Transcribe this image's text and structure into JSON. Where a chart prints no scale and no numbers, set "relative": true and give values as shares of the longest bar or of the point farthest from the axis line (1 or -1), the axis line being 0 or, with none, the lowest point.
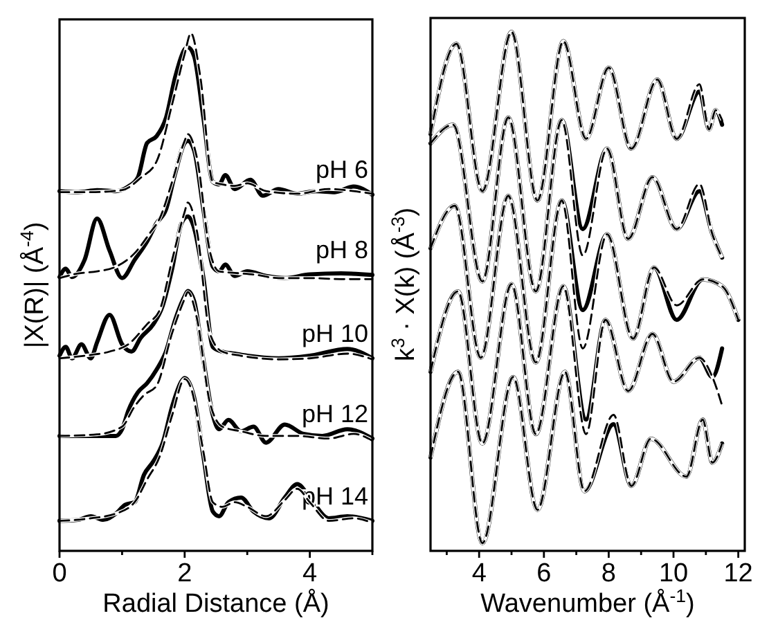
{
  "chart_data": [
    {
      "type": "line",
      "xlabel": "Radial Distance (Å)",
      "ylabel": "|X(R)| (Å$^{-4}$)",
      "xlim": [
        0,
        5
      ],
      "xticks": [
        0,
        {
          "value": 1,
          "label": null
        },
        2,
        {
          "value": 3,
          "label": null
        },
        4,
        {
          "value": 5,
          "label": null
        }
      ],
      "relative": true,
      "tick_labels": "x",
      "series": [
        {
          "name": "pH 6",
          "color": "#000000",
          "x": [
            0,
            0.3,
            0.6,
            0.9,
            1.1,
            1.25,
            1.4,
            1.55,
            1.7,
            1.85,
            2.0,
            2.05,
            2.15,
            2.3,
            2.45,
            2.55,
            2.65,
            2.8,
            3.05,
            3.25,
            3.5,
            3.8,
            4.1,
            4.4,
            4.7,
            5
          ],
          "values": [
            0.695,
            0.693,
            0.697,
            0.695,
            0.704,
            0.721,
            0.788,
            0.801,
            0.836,
            0.916,
            0.969,
            0.973,
            0.956,
            0.836,
            0.713,
            0.708,
            0.726,
            0.699,
            0.717,
            0.686,
            0.699,
            0.69,
            0.695,
            0.693,
            0.704,
            0.688
          ]
        },
        {
          "color": "#000000",
          "line_style": "dashed",
          "x": [
            0,
            0.5,
            1.0,
            1.3,
            1.55,
            1.8,
            2.0,
            2.1,
            2.25,
            2.45,
            2.6,
            2.8,
            3.0,
            3.3,
            3.8,
            4.3,
            4.7,
            5
          ],
          "values": [
            0.693,
            0.693,
            0.697,
            0.721,
            0.752,
            0.863,
            0.96,
            1.0,
            0.916,
            0.713,
            0.708,
            0.705,
            0.71,
            0.695,
            0.69,
            0.699,
            0.695,
            0.69
          ]
        },
        {
          "name": "pH 8",
          "color": "#000000",
          "x": [
            0,
            0.1,
            0.2,
            0.4,
            0.6,
            0.8,
            1.0,
            1.2,
            1.4,
            1.55,
            1.7,
            1.85,
            2.0,
            2.05,
            2.15,
            2.3,
            2.45,
            2.55,
            2.65,
            2.8,
            3.0,
            3.3,
            3.6,
            4.0,
            4.5,
            5
          ],
          "values": [
            0.529,
            0.545,
            0.529,
            0.562,
            0.642,
            0.58,
            0.527,
            0.562,
            0.598,
            0.633,
            0.659,
            0.73,
            0.788,
            0.792,
            0.774,
            0.659,
            0.549,
            0.54,
            0.553,
            0.531,
            0.54,
            0.531,
            0.527,
            0.534,
            0.536,
            0.533
          ]
        },
        {
          "color": "#000000",
          "line_style": "dashed",
          "x": [
            0,
            0.3,
            0.6,
            0.9,
            1.2,
            1.45,
            1.6,
            1.8,
            2.0,
            2.05,
            2.2,
            2.4,
            2.55,
            2.8,
            3.1,
            3.5,
            4,
            4.5,
            5
          ],
          "values": [
            0.527,
            0.536,
            0.54,
            0.549,
            0.575,
            0.615,
            0.642,
            0.713,
            0.792,
            0.805,
            0.757,
            0.58,
            0.54,
            0.537,
            0.534,
            0.527,
            0.527,
            0.525,
            0.525
          ]
        },
        {
          "name": "pH 10",
          "color": "#000000",
          "x": [
            0,
            0.1,
            0.2,
            0.35,
            0.5,
            0.6,
            0.8,
            1.0,
            1.15,
            1.3,
            1.5,
            1.65,
            1.8,
            1.95,
            2.05,
            2.15,
            2.3,
            2.45,
            2.6,
            2.8,
            3.0,
            3.5,
            4.0,
            4.6,
            5
          ],
          "values": [
            0.377,
            0.394,
            0.372,
            0.399,
            0.372,
            0.403,
            0.456,
            0.399,
            0.385,
            0.412,
            0.438,
            0.474,
            0.545,
            0.633,
            0.646,
            0.624,
            0.527,
            0.394,
            0.385,
            0.381,
            0.377,
            0.372,
            0.377,
            0.39,
            0.372
          ]
        },
        {
          "color": "#000000",
          "line_style": "dashed",
          "x": [
            0,
            0.4,
            0.8,
            1.1,
            1.4,
            1.6,
            1.8,
            2.0,
            2.05,
            2.2,
            2.4,
            2.6,
            2.9,
            3.5,
            4,
            4.6,
            5
          ],
          "values": [
            0.372,
            0.377,
            0.385,
            0.399,
            0.438,
            0.465,
            0.562,
            0.655,
            0.673,
            0.615,
            0.421,
            0.385,
            0.377,
            0.37,
            0.372,
            0.381,
            0.37
          ]
        },
        {
          "name": "pH 12",
          "color": "#000000",
          "x": [
            0,
            0.5,
            0.9,
            1.0,
            1.1,
            1.25,
            1.4,
            1.55,
            1.7,
            1.85,
            2.0,
            2.05,
            2.15,
            2.3,
            2.45,
            2.55,
            2.7,
            2.9,
            3.1,
            3.3,
            3.6,
            3.9,
            4.2,
            4.6,
            5
          ],
          "values": [
            0.222,
            0.222,
            0.222,
            0.235,
            0.271,
            0.306,
            0.324,
            0.35,
            0.385,
            0.447,
            0.492,
            0.502,
            0.483,
            0.368,
            0.262,
            0.235,
            0.253,
            0.231,
            0.24,
            0.209,
            0.244,
            0.226,
            0.222,
            0.235,
            0.217
          ]
        },
        {
          "color": "#000000",
          "line_style": "dashed",
          "x": [
            0,
            0.6,
            1.0,
            1.2,
            1.35,
            1.55,
            1.8,
            2.0,
            2.05,
            2.2,
            2.4,
            2.6,
            2.9,
            3.3,
            3.8,
            4.3,
            4.7,
            5
          ],
          "values": [
            0.222,
            0.225,
            0.24,
            0.279,
            0.301,
            0.319,
            0.421,
            0.487,
            0.5,
            0.447,
            0.288,
            0.24,
            0.231,
            0.222,
            0.222,
            0.217,
            0.226,
            0.213
          ]
        },
        {
          "name": "pH 14",
          "color": "#000000",
          "x": [
            0,
            0.3,
            0.5,
            0.7,
            0.9,
            1.05,
            1.2,
            1.35,
            1.5,
            1.65,
            1.8,
            1.95,
            2.0,
            2.15,
            2.3,
            2.45,
            2.55,
            2.7,
            2.9,
            3.1,
            3.35,
            3.6,
            3.8,
            4.0,
            4.3,
            4.6,
            5
          ],
          "values": [
            0.058,
            0.06,
            0.067,
            0.06,
            0.072,
            0.089,
            0.094,
            0.147,
            0.173,
            0.209,
            0.279,
            0.328,
            0.334,
            0.297,
            0.182,
            0.076,
            0.067,
            0.094,
            0.103,
            0.076,
            0.063,
            0.103,
            0.129,
            0.103,
            0.063,
            0.067,
            0.058
          ]
        },
        {
          "color": "#000000",
          "line_style": "dashed",
          "x": [
            0,
            0.5,
            0.9,
            1.2,
            1.4,
            1.6,
            1.8,
            2.0,
            2.1,
            2.3,
            2.45,
            2.6,
            2.8,
            3.0,
            3.3,
            3.6,
            3.8,
            4.0,
            4.3,
            4.7,
            5
          ],
          "values": [
            0.058,
            0.063,
            0.072,
            0.094,
            0.138,
            0.182,
            0.262,
            0.332,
            0.315,
            0.191,
            0.094,
            0.085,
            0.094,
            0.085,
            0.067,
            0.098,
            0.12,
            0.094,
            0.058,
            0.063,
            0.054
          ]
        }
      ]
    },
    {
      "type": "line",
      "xlabel": "Wavenumber (Å$^{-1}$)",
      "ylabel": "k$^{3}$ · X(k) (Å$^{-3}$)",
      "xlim": [
        2.5,
        12.2
      ],
      "xticks": [
        {
          "value": 3,
          "label": null
        },
        4,
        {
          "value": 5,
          "label": null
        },
        6,
        {
          "value": 7,
          "label": null
        },
        8,
        {
          "value": 9,
          "label": null
        },
        10,
        {
          "value": 11,
          "label": null
        },
        12
      ],
      "relative": true,
      "tick_labels": "x",
      "series": [
        {
          "color": "#000000",
          "x": [
            2.5,
            3.3,
            4.1,
            5.0,
            5.8,
            6.6,
            7.3,
            8.0,
            8.7,
            9.5,
            10.1,
            10.8,
            11.1,
            11.3,
            11.5
          ],
          "values": [
            0.803,
            0.977,
            0.693,
            1.0,
            0.675,
            0.982,
            0.794,
            0.931,
            0.775,
            0.908,
            0.794,
            0.885,
            0.812,
            0.849,
            0.821
          ]
        },
        {
          "color": "#000000",
          "line_style": "dashed",
          "x": [
            2.5,
            3.3,
            4.1,
            5.0,
            5.8,
            6.6,
            7.3,
            8.0,
            8.7,
            9.5,
            10.1,
            10.8,
            11.1,
            11.3,
            11.5
          ],
          "values": [
            0.803,
            0.977,
            0.693,
            1.0,
            0.675,
            0.982,
            0.794,
            0.931,
            0.775,
            0.908,
            0.794,
            0.899,
            0.812,
            0.849,
            0.83
          ]
        },
        {
          "color": "#000000",
          "x": [
            2.5,
            3.2,
            4.1,
            4.9,
            5.75,
            6.55,
            7.2,
            7.95,
            8.6,
            9.35,
            10.1,
            10.8,
            11.2,
            11.5
          ],
          "values": [
            0.785,
            0.821,
            0.519,
            0.835,
            0.5,
            0.83,
            0.62,
            0.775,
            0.601,
            0.72,
            0.62,
            0.693,
            0.61,
            0.565
          ]
        },
        {
          "color": "#000000",
          "line_style": "dashed",
          "x": [
            2.5,
            3.2,
            4.1,
            4.9,
            5.75,
            6.55,
            7.2,
            7.95,
            8.6,
            9.35,
            10.1,
            10.8,
            11.2,
            11.5
          ],
          "values": [
            0.785,
            0.821,
            0.519,
            0.835,
            0.5,
            0.83,
            0.569,
            0.775,
            0.601,
            0.72,
            0.62,
            0.707,
            0.61,
            0.565
          ]
        },
        {
          "color": "#000000",
          "x": [
            2.5,
            3.25,
            4.05,
            4.9,
            5.75,
            6.55,
            7.2,
            7.95,
            8.75,
            9.4,
            10.1,
            10.9,
            11.5,
            12.0
          ],
          "values": [
            0.583,
            0.665,
            0.372,
            0.684,
            0.363,
            0.675,
            0.464,
            0.61,
            0.409,
            0.546,
            0.445,
            0.523,
            0.51,
            0.445
          ]
        },
        {
          "color": "#000000",
          "line_style": "dashed",
          "x": [
            2.5,
            3.25,
            4.05,
            4.9,
            5.75,
            6.55,
            7.2,
            7.95,
            8.75,
            9.4,
            10.1,
            10.9,
            11.5,
            12.0
          ],
          "values": [
            0.583,
            0.665,
            0.372,
            0.684,
            0.363,
            0.675,
            0.39,
            0.61,
            0.409,
            0.546,
            0.473,
            0.523,
            0.51,
            0.445
          ]
        },
        {
          "color": "#000000",
          "x": [
            2.5,
            3.35,
            4.1,
            5.0,
            5.75,
            6.6,
            7.3,
            7.9,
            8.6,
            9.35,
            10.0,
            10.8,
            11.2,
            11.5
          ],
          "values": [
            0.345,
            0.5,
            0.207,
            0.514,
            0.225,
            0.51,
            0.253,
            0.445,
            0.308,
            0.418,
            0.326,
            0.372,
            0.335,
            0.39
          ]
        },
        {
          "color": "#000000",
          "line_style": "dashed",
          "x": [
            2.5,
            3.35,
            4.1,
            5.0,
            5.75,
            6.6,
            7.3,
            7.9,
            8.6,
            9.35,
            10.0,
            10.8,
            11.2,
            11.5
          ],
          "values": [
            0.345,
            0.5,
            0.207,
            0.514,
            0.225,
            0.51,
            0.225,
            0.445,
            0.308,
            0.418,
            0.326,
            0.372,
            0.335,
            0.28
          ]
        },
        {
          "color": "#000000",
          "x": [
            2.5,
            3.35,
            4.1,
            5.05,
            5.8,
            6.65,
            7.25,
            8.15,
            8.7,
            9.3,
            10.4,
            10.9,
            11.2,
            11.5
          ],
          "values": [
            0.18,
            0.345,
            0.015,
            0.335,
            0.079,
            0.345,
            0.115,
            0.244,
            0.125,
            0.216,
            0.143,
            0.253,
            0.17,
            0.207
          ]
        },
        {
          "color": "#000000",
          "line_style": "dashed",
          "x": [
            2.5,
            3.35,
            4.1,
            5.05,
            5.8,
            6.65,
            7.25,
            8.15,
            8.7,
            9.3,
            10.4,
            10.9,
            11.2,
            11.5
          ],
          "values": [
            0.18,
            0.345,
            0.015,
            0.335,
            0.079,
            0.345,
            0.115,
            0.262,
            0.125,
            0.216,
            0.143,
            0.253,
            0.17,
            0.207
          ]
        }
      ]
    }
  ]
}
